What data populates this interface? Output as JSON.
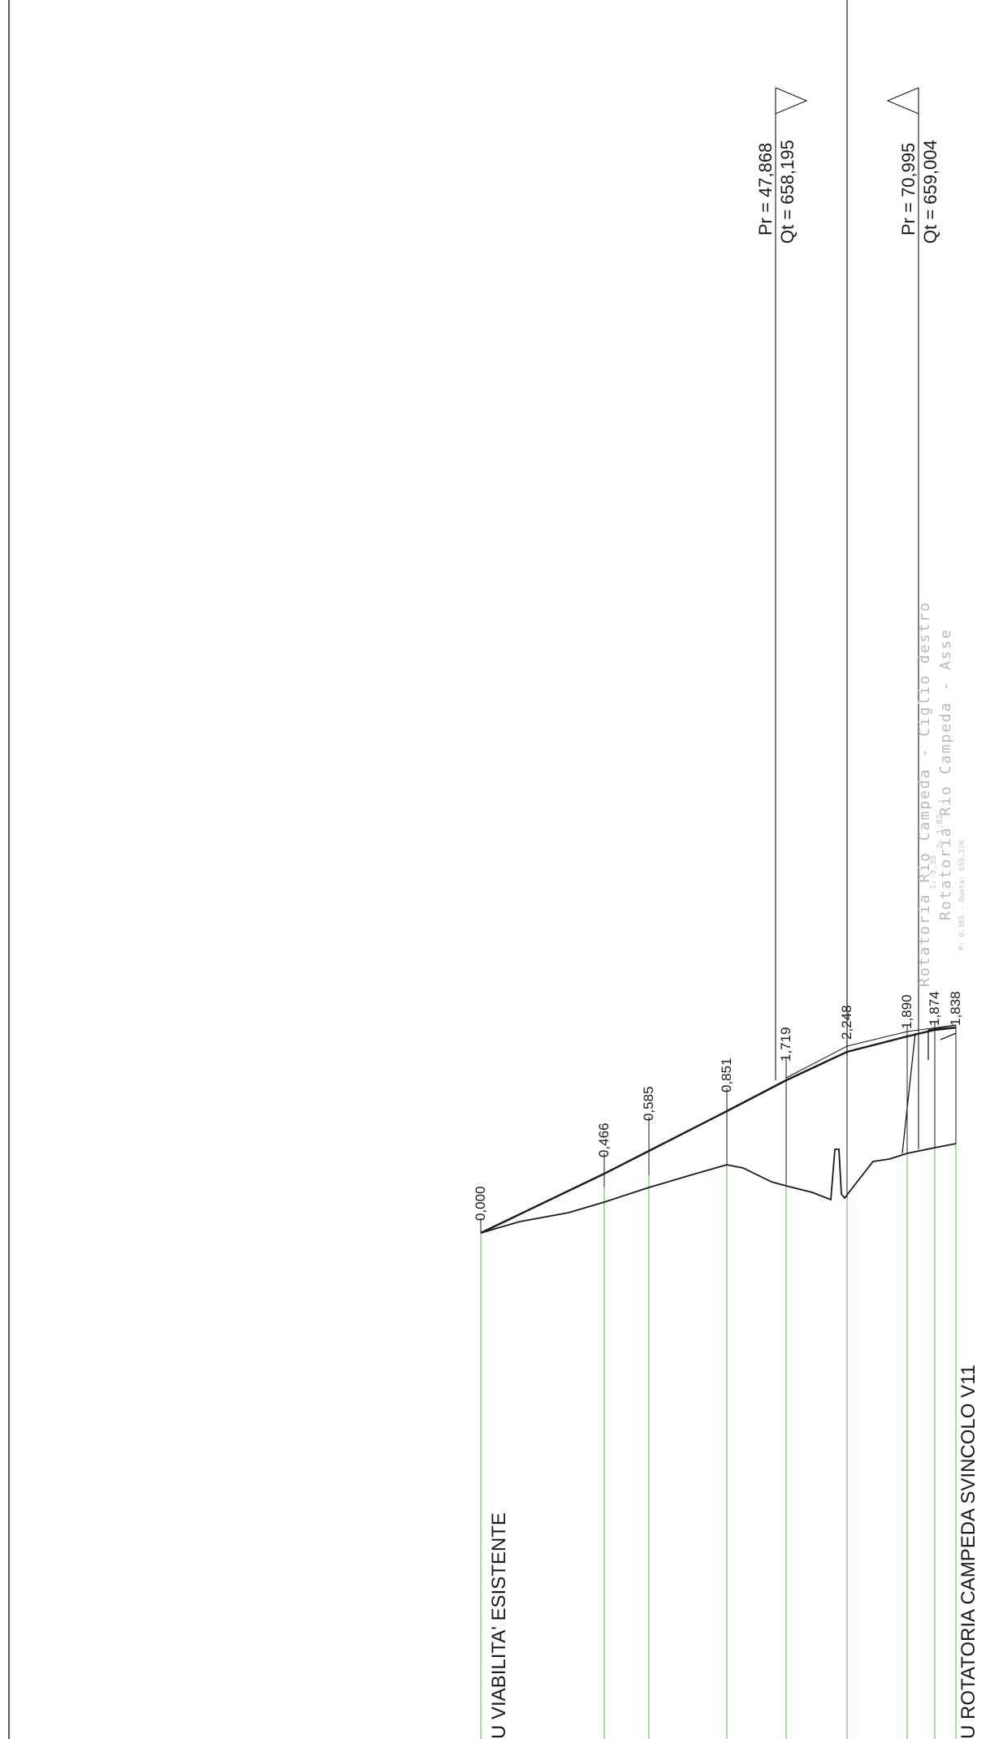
{
  "profile_labels": {
    "existing": "U VIABILITA' ESISTENTE",
    "roundabout": "U ROTATORIA CAMPEDA SVINCOLO V11"
  },
  "sections": [
    {
      "id": "s1",
      "value": "0,000"
    },
    {
      "id": "s2",
      "value": "0,466"
    },
    {
      "id": "s3",
      "value": "0,585"
    },
    {
      "id": "s4",
      "value": "0,851"
    },
    {
      "id": "s5",
      "value": "1,719"
    },
    {
      "id": "s6",
      "value": "2,248"
    },
    {
      "id": "s7",
      "value": "1,890"
    },
    {
      "id": "s8",
      "value": "1,874"
    },
    {
      "id": "s9",
      "value": "1,838"
    }
  ],
  "references": [
    {
      "pr": "Pr = 47,868",
      "qt": "Qt = 658,195"
    },
    {
      "pr": "Pr = 70,995",
      "qt": "Qt = 659,004"
    }
  ],
  "alignment_labels": {
    "edge": "Rotatoria Rio Campeda - Ciglio destro",
    "axis": "Rotatoria Rio Campeda - Asse",
    "fragment_1": "1: 9,35",
    "fragment_2": "2: 1,82",
    "fragment_3": "P: 0,385 - Quota: 659,126"
  },
  "colors": {
    "line": "#1a1a1a",
    "guide": "#6cbf5a",
    "ghost_text": "#b8b8b8"
  }
}
